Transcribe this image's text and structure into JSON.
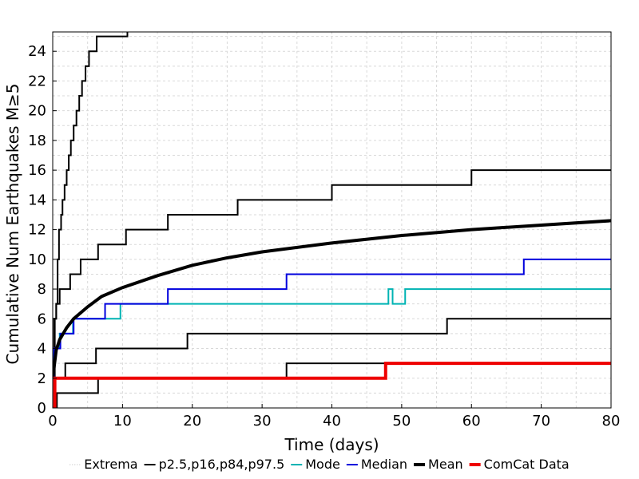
{
  "chart_data": {
    "type": "line",
    "xlabel": "Time (days)",
    "ylabel": "Cumulative Num Earthquakes M≥5",
    "xlim": [
      0,
      80
    ],
    "ylim": [
      0,
      25.3
    ],
    "xticks": [
      "0",
      "10",
      "20",
      "30",
      "40",
      "50",
      "60",
      "70",
      "80"
    ],
    "yticks": [
      "0",
      "2",
      "4",
      "6",
      "8",
      "10",
      "12",
      "14",
      "16",
      "18",
      "20",
      "22",
      "24"
    ],
    "grid": true,
    "legend_position": "bottom",
    "legend": [
      {
        "label": "Extrema",
        "color": "#bbbbbb",
        "style": "dotted"
      },
      {
        "label": "p2.5,p16,p84,p97.5",
        "color": "#000000",
        "style": "solid"
      },
      {
        "label": "Mode",
        "color": "#00b3b3",
        "style": "solid"
      },
      {
        "label": "Median",
        "color": "#0000dd",
        "style": "solid"
      },
      {
        "label": "Mean",
        "color": "#000000",
        "style": "thick"
      },
      {
        "label": "ComCat Data",
        "color": "#ee0000",
        "style": "thick"
      }
    ],
    "series": [
      {
        "key": "p97_5",
        "group": "percentile",
        "color": "#000000",
        "width": 2,
        "step": true,
        "x": [
          0,
          0.3,
          0.5,
          0.7,
          0.9,
          1.2,
          1.4,
          1.7,
          2.0,
          2.3,
          2.6,
          3.0,
          3.4,
          3.8,
          4.2,
          4.7,
          5.2,
          5.7,
          6.3,
          6.9,
          7.5,
          8.3,
          9.0,
          9.9,
          10.7,
          11.5
        ],
        "y": [
          2,
          6,
          7,
          10,
          12,
          13,
          14,
          15,
          16,
          17,
          18,
          19,
          20,
          21,
          22,
          23,
          24,
          24,
          25,
          25,
          25,
          25,
          25,
          25,
          26,
          26
        ]
      },
      {
        "key": "p84",
        "group": "percentile",
        "color": "#000000",
        "width": 2,
        "step": true,
        "x": [
          0,
          0.2,
          0.5,
          1.0,
          2.5,
          4.0,
          6.5,
          10.5,
          16.5,
          26.5,
          40.0,
          60.0,
          80.0
        ],
        "y": [
          2,
          6,
          7,
          8,
          9,
          10,
          11,
          12,
          13,
          14,
          15,
          16,
          16
        ]
      },
      {
        "key": "p16",
        "group": "percentile",
        "color": "#000000",
        "width": 2,
        "step": true,
        "x": [
          0,
          1.8,
          6.2,
          19.3,
          56.5,
          80.0
        ],
        "y": [
          2,
          3,
          4,
          5,
          6,
          6
        ]
      },
      {
        "key": "p2_5",
        "group": "percentile",
        "color": "#000000",
        "width": 2,
        "step": true,
        "x": [
          0,
          0.6,
          6.5,
          33.5,
          80.0
        ],
        "y": [
          0,
          1,
          2,
          3,
          3
        ]
      },
      {
        "key": "mode",
        "group": "Mode",
        "color": "#00b3b3",
        "width": 2,
        "step": true,
        "x": [
          0,
          0.2,
          1.0,
          2.9,
          9.7,
          18.8,
          48.1,
          48.7,
          50.5,
          80.0
        ],
        "y": [
          3,
          4,
          5,
          6,
          7,
          7,
          8,
          7,
          8,
          8
        ]
      },
      {
        "key": "median",
        "group": "Median",
        "color": "#0000dd",
        "width": 2,
        "step": true,
        "x": [
          0,
          0.2,
          1.1,
          3.0,
          7.5,
          16.5,
          33.5,
          67.5,
          80.0
        ],
        "y": [
          2,
          4,
          5,
          6,
          7,
          8,
          9,
          10,
          10
        ]
      },
      {
        "key": "mean",
        "group": "Mean",
        "color": "#000000",
        "width": 4,
        "step": false,
        "x": [
          0,
          0.5,
          1,
          2,
          3,
          5,
          7,
          10,
          15,
          20,
          25,
          30,
          40,
          50,
          60,
          70,
          80
        ],
        "y": [
          2.0,
          3.9,
          4.6,
          5.4,
          6.0,
          6.8,
          7.5,
          8.1,
          8.9,
          9.6,
          10.1,
          10.5,
          11.1,
          11.6,
          12.0,
          12.3,
          12.6
        ]
      },
      {
        "key": "comcat",
        "group": "ComCat Data",
        "color": "#ee0000",
        "width": 4,
        "step": true,
        "x": [
          0,
          0.3,
          47.7,
          80.0
        ],
        "y": [
          0,
          2,
          3,
          3
        ]
      }
    ]
  }
}
